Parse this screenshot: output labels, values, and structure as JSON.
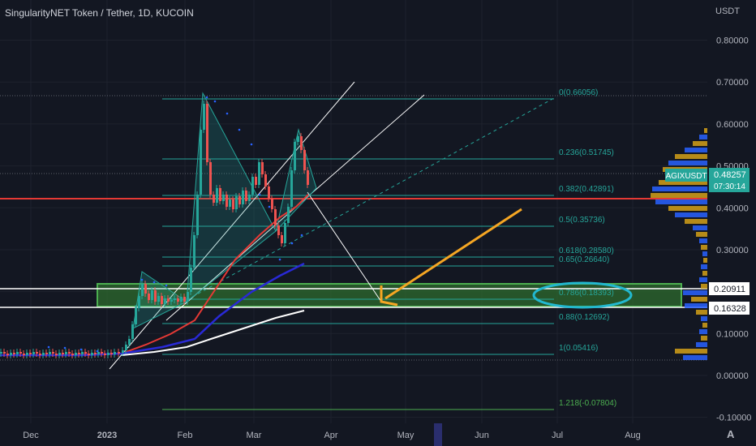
{
  "header": {
    "title": "SingularityNET Token / Tether, 1D, KUCOIN",
    "currency": "USDT"
  },
  "colors": {
    "background": "#131722",
    "grid": "#1e222d",
    "text": "#b2b5be",
    "fib_line": "#26a69a",
    "fib_text": "#26a69a",
    "fib_last": "#4caf50",
    "red_ma": "#e53935",
    "blue_ma": "#2929d6",
    "white_ma": "#ffffff",
    "channel": "#ffffff",
    "zone_fill": "#2e6b2e",
    "zone_stroke": "#4caf50",
    "arrow": "#f5a623",
    "circle": "#22b8cf",
    "up_candle": "#26a69a",
    "down_candle": "#ef5350",
    "volume_up": "#2962ff",
    "volume_down": "#d4a017",
    "price_badge": "#26a69a",
    "sar_dots": "#2962ff"
  },
  "chart_data": {
    "type": "candlestick",
    "symbol": "AGIXUSDT",
    "title": "SingularityNET Token / Tether, 1D, KUCOIN",
    "ylabel": "USDT",
    "ylim": [
      -0.11,
      0.86
    ],
    "y_ticks": [
      "0.80000",
      "0.70000",
      "0.60000",
      "0.50000",
      "0.40000",
      "0.30000",
      "0.20000",
      "0.10000",
      "0.00000",
      "-0.10000"
    ],
    "x_tick_labels": [
      "Dec",
      "2023",
      "Feb",
      "Mar",
      "Apr",
      "May",
      "Jun",
      "Jul",
      "Aug"
    ],
    "fibonacci_levels": [
      {
        "label": "0(0.66056)",
        "value": 0.66056
      },
      {
        "label": "0.236(0.51745)",
        "value": 0.51745
      },
      {
        "label": "0.382(0.42891)",
        "value": 0.42891
      },
      {
        "label": "0.5(0.35736)",
        "value": 0.35736
      },
      {
        "label": "0.618(0.28580)",
        "value": 0.2858
      },
      {
        "label": "0.65(0.26640)",
        "value": 0.2664
      },
      {
        "label": "0.786(0.18393)",
        "value": 0.18393
      },
      {
        "label": "0.88(0.12692)",
        "value": 0.12692
      },
      {
        "label": "1(0.05416)",
        "value": 0.05416
      },
      {
        "label": "1.218(-0.07804)",
        "value": -0.07804
      }
    ],
    "price_labels": [
      {
        "symbol": "AGIXUSDT",
        "value": "0.48257",
        "countdown": "07:30:14"
      },
      {
        "value": "0.20911"
      },
      {
        "value": "0.16328"
      }
    ],
    "support_zone": [
      0.16328,
      0.20911
    ],
    "horizontal_red_line": 0.42,
    "candles_close_approx": [
      {
        "x": "Dec",
        "close": 0.05
      },
      {
        "x": "2023",
        "close": 0.05
      },
      {
        "x": "mid-Jan",
        "close": 0.22
      },
      {
        "x": "late-Jan",
        "close": 0.19
      },
      {
        "x": "early-Feb",
        "close": 0.66
      },
      {
        "x": "mid-Feb",
        "close": 0.42
      },
      {
        "x": "late-Feb",
        "close": 0.45
      },
      {
        "x": "early-Mar",
        "close": 0.34
      },
      {
        "x": "mid-Mar",
        "close": 0.58
      },
      {
        "x": "latest",
        "close": 0.48257
      }
    ]
  }
}
